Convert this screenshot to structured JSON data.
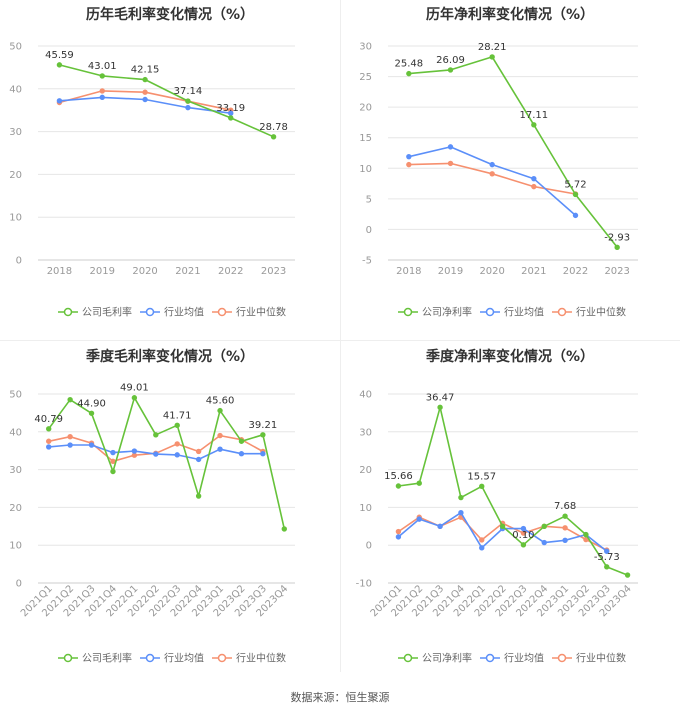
{
  "footer": {
    "source": "数据来源：恒生聚源"
  },
  "legend_labels": {
    "metric_annual_gross": "公司毛利率",
    "metric_annual_net": "公司净利率",
    "avg": "行业均值",
    "median": "行业中位数"
  },
  "colors": {
    "company": "#66c23a",
    "avg": "#5b8ff9",
    "median": "#f6906f",
    "grid": "#e6e6e6",
    "axis": "#cccccc",
    "tick": "#999999",
    "label": "#333333"
  },
  "chart_data": [
    {
      "type": "line",
      "title": "历年毛利率变化情况（%）",
      "categories": [
        "2018",
        "2019",
        "2020",
        "2021",
        "2022",
        "2023"
      ],
      "ylim": [
        0,
        50
      ],
      "yticks": [
        0,
        10,
        20,
        30,
        40,
        50
      ],
      "grid": true,
      "legend_position": "bottom",
      "series": [
        {
          "name": "公司毛利率",
          "values": [
            45.59,
            43.01,
            42.15,
            37.14,
            33.19,
            28.78
          ],
          "labels": [
            "45.59",
            "43.01",
            "42.15",
            "37.14",
            "33.19",
            "28.78"
          ]
        },
        {
          "name": "行业均值",
          "values": [
            37.2,
            38.0,
            37.5,
            35.6,
            34.3,
            null
          ]
        },
        {
          "name": "行业中位数",
          "values": [
            36.8,
            39.5,
            39.2,
            37.1,
            35.0,
            null
          ]
        }
      ]
    },
    {
      "type": "line",
      "title": "历年净利率变化情况（%）",
      "categories": [
        "2018",
        "2019",
        "2020",
        "2021",
        "2022",
        "2023"
      ],
      "ylim": [
        -5,
        30
      ],
      "yticks": [
        -5,
        0,
        5,
        10,
        15,
        20,
        25,
        30
      ],
      "grid": true,
      "legend_position": "bottom",
      "series": [
        {
          "name": "公司净利率",
          "values": [
            25.48,
            26.09,
            28.21,
            17.11,
            5.72,
            -2.93
          ],
          "labels": [
            "25.48",
            "26.09",
            "28.21",
            "17.11",
            "5.72",
            "-2.93"
          ]
        },
        {
          "name": "行业均值",
          "values": [
            11.9,
            13.5,
            10.6,
            8.3,
            2.3,
            null
          ]
        },
        {
          "name": "行业中位数",
          "values": [
            10.6,
            10.8,
            9.1,
            7.0,
            5.8,
            null
          ]
        }
      ]
    },
    {
      "type": "line",
      "title": "季度毛利率变化情况（%）",
      "categories": [
        "2021Q1",
        "2021Q2",
        "2021Q3",
        "2021Q4",
        "2022Q1",
        "2022Q2",
        "2022Q3",
        "2022Q4",
        "2023Q1",
        "2023Q2",
        "2023Q3",
        "2023Q4"
      ],
      "ylim": [
        0,
        50
      ],
      "yticks": [
        0,
        10,
        20,
        30,
        40,
        50
      ],
      "grid": true,
      "legend_position": "bottom",
      "series": [
        {
          "name": "公司毛利率",
          "values": [
            40.79,
            48.5,
            44.9,
            29.5,
            49.01,
            39.2,
            41.71,
            23.0,
            45.6,
            37.5,
            39.21,
            14.3
          ],
          "labels": [
            "40.79",
            "",
            "44.90",
            "",
            "49.01",
            "",
            "41.71",
            "",
            "45.60",
            "",
            "39.21",
            ""
          ]
        },
        {
          "name": "行业均值",
          "values": [
            36.0,
            36.5,
            36.5,
            34.5,
            34.9,
            34.1,
            33.9,
            32.7,
            35.4,
            34.2,
            34.2,
            null
          ]
        },
        {
          "name": "行业中位数",
          "values": [
            37.5,
            38.7,
            37.0,
            32.2,
            33.8,
            34.3,
            36.8,
            34.8,
            39.0,
            37.9,
            34.8,
            null
          ]
        }
      ]
    },
    {
      "type": "line",
      "title": "季度净利率变化情况（%）",
      "categories": [
        "2021Q1",
        "2021Q2",
        "2021Q3",
        "2021Q4",
        "2022Q1",
        "2022Q2",
        "2022Q3",
        "2022Q4",
        "2023Q1",
        "2023Q2",
        "2023Q3",
        "2023Q4"
      ],
      "ylim": [
        -10,
        40
      ],
      "yticks": [
        -10,
        0,
        10,
        20,
        30,
        40
      ],
      "grid": true,
      "legend_position": "bottom",
      "series": [
        {
          "name": "公司净利率",
          "values": [
            15.66,
            16.4,
            36.47,
            12.6,
            15.57,
            5.0,
            0.1,
            5.0,
            7.68,
            2.8,
            -5.73,
            -7.9
          ],
          "labels": [
            "15.66",
            "",
            "36.47",
            "",
            "15.57",
            "",
            "0.10",
            "",
            "7.68",
            "",
            "-5.73",
            ""
          ]
        },
        {
          "name": "行业均值",
          "values": [
            2.2,
            6.9,
            5.0,
            8.6,
            -0.7,
            4.4,
            4.4,
            0.7,
            1.3,
            2.8,
            -1.6,
            null
          ]
        },
        {
          "name": "行业中位数",
          "values": [
            3.6,
            7.4,
            5.0,
            7.4,
            1.4,
            5.8,
            3.2,
            5.0,
            4.6,
            1.5,
            -1.3,
            null
          ]
        }
      ]
    }
  ]
}
